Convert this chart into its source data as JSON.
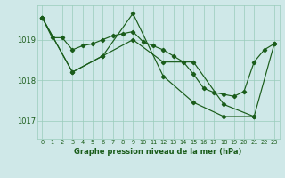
{
  "title": "Graphe pression niveau de la mer (hPa)",
  "bg_color": "#cfe8e8",
  "line_color": "#1a5c1a",
  "grid_color": "#99ccbb",
  "xlim": [
    -0.5,
    23.5
  ],
  "ylim": [
    1016.55,
    1019.85
  ],
  "yticks": [
    1017,
    1018,
    1019
  ],
  "xticks": [
    0,
    1,
    2,
    3,
    4,
    5,
    6,
    7,
    8,
    9,
    10,
    11,
    12,
    13,
    14,
    15,
    16,
    17,
    18,
    19,
    20,
    21,
    22,
    23
  ],
  "series1_x": [
    0,
    1,
    2,
    3,
    4,
    5,
    6,
    7,
    8,
    9,
    10,
    11,
    12,
    13,
    14,
    15,
    16,
    17,
    18,
    19,
    20,
    21,
    22,
    23
  ],
  "series1_y": [
    1019.55,
    1019.05,
    1019.05,
    1018.75,
    1018.85,
    1018.9,
    1019.0,
    1019.1,
    1019.15,
    1019.2,
    1018.95,
    1018.85,
    1018.75,
    1018.6,
    1018.45,
    1018.15,
    1017.8,
    1017.7,
    1017.65,
    1017.6,
    1017.72,
    1018.45,
    1018.75,
    1018.9
  ],
  "series2_x": [
    0,
    3,
    6,
    9,
    12,
    15,
    18,
    21,
    23
  ],
  "series2_y": [
    1019.55,
    1018.2,
    1018.6,
    1019.0,
    1018.45,
    1018.45,
    1017.4,
    1017.1,
    1018.9
  ],
  "series3_x": [
    0,
    3,
    6,
    9,
    12,
    15,
    18,
    21
  ],
  "series3_y": [
    1019.55,
    1018.2,
    1018.6,
    1019.65,
    1018.1,
    1017.45,
    1017.1,
    1017.1
  ]
}
